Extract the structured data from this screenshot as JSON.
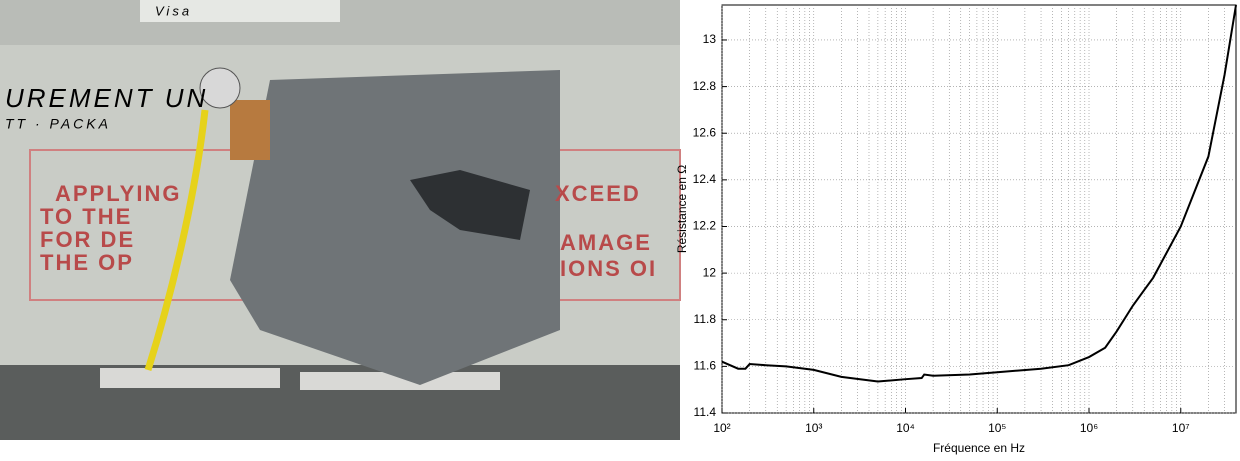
{
  "photo": {
    "labels": [
      "Visa",
      "UREMENT UN",
      "TT · PACKA",
      "APPLYING",
      "TO THE",
      "FOR DE",
      "THE OP",
      "XCEED",
      "AMAGE",
      "IONS OI"
    ]
  },
  "chart_data": {
    "type": "line",
    "xlabel": "Fréquence en Hz",
    "ylabel": "Résistance  en Ω",
    "x": [
      100,
      150,
      180,
      200,
      300,
      500,
      1000,
      2000,
      5000,
      10000,
      15000,
      16000,
      20000,
      50000,
      100000,
      300000,
      600000,
      1000000,
      1500000,
      2000000,
      3000000,
      5000000,
      10000000,
      20000000,
      30000000,
      40000000
    ],
    "values": [
      11.62,
      11.59,
      11.59,
      11.61,
      11.605,
      11.6,
      11.585,
      11.555,
      11.535,
      11.545,
      11.55,
      11.565,
      11.56,
      11.565,
      11.575,
      11.59,
      11.605,
      11.64,
      11.68,
      11.75,
      11.86,
      11.98,
      12.2,
      12.5,
      12.85,
      13.15
    ],
    "color": "#000000",
    "xscale": "log",
    "xlim": [
      100,
      40000000
    ],
    "xticks": [
      {
        "value": 100,
        "label": "10²"
      },
      {
        "value": 1000,
        "label": "10³"
      },
      {
        "value": 10000,
        "label": "10⁴"
      },
      {
        "value": 100000,
        "label": "10⁵"
      },
      {
        "value": 1000000,
        "label": "10⁶"
      },
      {
        "value": 10000000,
        "label": "10⁷"
      }
    ],
    "ylim": [
      11.4,
      13.15
    ],
    "yticks": [
      11.4,
      11.6,
      11.8,
      12,
      12.2,
      12.4,
      12.6,
      12.8,
      13
    ],
    "grid": true
  }
}
